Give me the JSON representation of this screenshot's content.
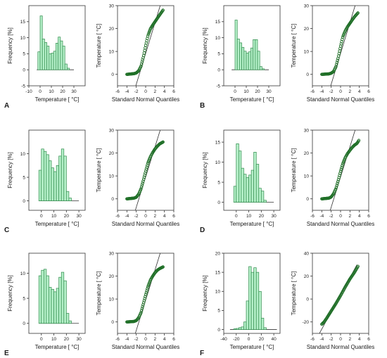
{
  "figure": {
    "panels": [
      {
        "letter": "A"
      },
      {
        "letter": "B"
      },
      {
        "letter": "C"
      },
      {
        "letter": "D"
      },
      {
        "letter": "E"
      },
      {
        "letter": "F"
      }
    ]
  },
  "colors": {
    "bar_fill": "#b5f0c9",
    "bar_stroke": "#2f8a4b",
    "point_stroke": "#1f6f27",
    "line": "#333333"
  },
  "chart_data": [
    {
      "panel": "A",
      "type": "bar",
      "xlabel": "Temperature [ °C]",
      "ylabel": "Frequency [%]",
      "xlim": [
        -10,
        40
      ],
      "xticks": [
        -10,
        0,
        10,
        20,
        30
      ],
      "ylim": [
        -5,
        20
      ],
      "yticks": [
        -5,
        0,
        5,
        10,
        15
      ],
      "bin_width": 2,
      "bins": [
        -2,
        0,
        2,
        4,
        6,
        8,
        10,
        12,
        14,
        16,
        18,
        20,
        22,
        24
      ],
      "values": [
        5.6,
        16.8,
        9.6,
        8.5,
        7.4,
        5.0,
        5.2,
        5.8,
        8.3,
        10.2,
        9.0,
        7.4,
        1.8,
        0.5
      ],
      "baseline_range": [
        -3,
        30
      ]
    },
    {
      "panel": "A",
      "type": "scatter",
      "xlabel": "Standard Normal Quantiles",
      "ylabel": "Temperature [ °C]",
      "xlim": [
        -6,
        6
      ],
      "xticks": [
        -6,
        -4,
        -2,
        0,
        2,
        4,
        6
      ],
      "ylim": [
        -5,
        30
      ],
      "yticks": [
        0,
        10,
        20,
        30
      ],
      "qq_profile": {
        "x": [
          -4.0,
          -2.5,
          -2.0,
          -1.5,
          -1.0,
          -0.5,
          0.0,
          0.5,
          1.0,
          1.5,
          2.0,
          2.5,
          3.0,
          3.7
        ],
        "y": [
          0.0,
          0.3,
          0.6,
          1.5,
          3.5,
          7.5,
          12.5,
          17.0,
          19.8,
          21.5,
          23.0,
          24.5,
          26.0,
          28.0
        ]
      },
      "reference_line": {
        "x": [
          -2.1,
          3.1
        ],
        "y": [
          -5,
          30
        ]
      }
    },
    {
      "panel": "B",
      "type": "bar",
      "xlabel": "Temperature [ °C]",
      "ylabel": "Frequency [%]",
      "xlim": [
        -10,
        40
      ],
      "xticks": [
        0,
        10,
        20,
        30
      ],
      "ylim": [
        -5,
        20
      ],
      "yticks": [
        -5,
        0,
        5,
        10,
        15
      ],
      "bin_width": 2,
      "bins": [
        -2,
        0,
        2,
        4,
        6,
        8,
        10,
        12,
        14,
        16,
        18,
        20,
        22,
        24
      ],
      "values": [
        0.0,
        15.5,
        9.6,
        8.4,
        7.0,
        5.8,
        5.2,
        5.6,
        6.8,
        9.4,
        9.4,
        5.8,
        1.0,
        0.3
      ],
      "baseline_range": [
        -3,
        30
      ]
    },
    {
      "panel": "B",
      "type": "scatter",
      "xlabel": "Standard Normal Quantiles",
      "ylabel": "Temperature [ °C]",
      "xlim": [
        -6,
        6
      ],
      "xticks": [
        -6,
        -4,
        -2,
        0,
        2,
        4,
        6
      ],
      "ylim": [
        -5,
        30
      ],
      "yticks": [
        0,
        10,
        20,
        30
      ],
      "qq_profile": {
        "x": [
          -4.0,
          -2.5,
          -2.0,
          -1.5,
          -1.0,
          -0.5,
          0.0,
          0.5,
          1.0,
          1.5,
          2.0,
          2.5,
          3.0,
          3.7
        ],
        "y": [
          0.0,
          0.2,
          0.5,
          1.2,
          3.3,
          7.3,
          12.2,
          16.5,
          19.0,
          20.8,
          22.3,
          23.8,
          25.2,
          26.8
        ]
      },
      "reference_line": {
        "x": [
          -2.1,
          3.1
        ],
        "y": [
          -5,
          30
        ]
      }
    },
    {
      "panel": "C",
      "type": "bar",
      "xlabel": "Temperature [ °C]",
      "ylabel": "Frequency [%]",
      "xlim": [
        -10,
        35
      ],
      "xticks": [
        0,
        10,
        20,
        30
      ],
      "ylim": [
        -2,
        15
      ],
      "yticks": [
        0,
        5,
        10
      ],
      "bin_width": 2,
      "bins": [
        -2,
        0,
        2,
        4,
        6,
        8,
        10,
        12,
        14,
        16,
        18,
        20,
        22
      ],
      "values": [
        6.5,
        11.0,
        10.5,
        9.8,
        8.5,
        7.0,
        6.2,
        7.5,
        9.5,
        11.0,
        9.5,
        2.0,
        0.6
      ],
      "baseline_range": [
        -2,
        30
      ]
    },
    {
      "panel": "C",
      "type": "scatter",
      "xlabel": "Standard Normal Quantiles",
      "ylabel": "Temperature [ °C]",
      "xlim": [
        -6,
        6
      ],
      "xticks": [
        -6,
        -4,
        -2,
        0,
        2,
        4,
        6
      ],
      "ylim": [
        -5,
        30
      ],
      "yticks": [
        0,
        10,
        20,
        30
      ],
      "qq_profile": {
        "x": [
          -4.0,
          -2.5,
          -2.0,
          -1.5,
          -1.0,
          -0.5,
          0.0,
          0.5,
          1.0,
          1.5,
          2.0,
          2.5,
          3.0,
          3.7
        ],
        "y": [
          0.0,
          0.3,
          0.7,
          2.0,
          4.3,
          8.0,
          12.0,
          15.8,
          18.3,
          20.2,
          21.8,
          23.0,
          24.0,
          24.8
        ]
      },
      "reference_line": {
        "x": [
          -2.2,
          3.1
        ],
        "y": [
          -5,
          30
        ]
      }
    },
    {
      "panel": "D",
      "type": "bar",
      "xlabel": "Temperature [ °C]",
      "ylabel": "Frequency [%]",
      "xlim": [
        -10,
        35
      ],
      "xticks": [
        0,
        10,
        20,
        30
      ],
      "ylim": [
        -2,
        18
      ],
      "yticks": [
        0,
        5,
        10,
        15
      ],
      "bin_width": 2,
      "bins": [
        -2,
        0,
        2,
        4,
        6,
        8,
        10,
        12,
        14,
        16,
        18,
        20,
        22
      ],
      "values": [
        4.0,
        14.6,
        12.8,
        8.5,
        7.0,
        6.2,
        6.8,
        8.0,
        12.5,
        9.5,
        3.5,
        2.8,
        0.5
      ],
      "baseline_range": [
        -2,
        30
      ]
    },
    {
      "panel": "D",
      "type": "scatter",
      "xlabel": "Standard Normal Quantiles",
      "ylabel": "Temperature [ °C]",
      "xlim": [
        -6,
        6
      ],
      "xticks": [
        -6,
        -4,
        -2,
        0,
        2,
        4,
        6
      ],
      "ylim": [
        -5,
        30
      ],
      "yticks": [
        0,
        10,
        20,
        30
      ],
      "qq_profile": {
        "x": [
          -4.0,
          -2.5,
          -2.0,
          -1.5,
          -1.0,
          -0.5,
          0.0,
          0.5,
          1.0,
          1.5,
          2.0,
          2.5,
          3.0,
          3.5,
          3.9
        ],
        "y": [
          0.0,
          0.3,
          0.8,
          2.2,
          4.4,
          8.0,
          12.0,
          15.5,
          18.0,
          19.8,
          21.2,
          22.5,
          23.5,
          24.2,
          25.5
        ]
      },
      "reference_line": {
        "x": [
          -2.2,
          3.1
        ],
        "y": [
          -5,
          30
        ]
      }
    },
    {
      "panel": "E",
      "type": "bar",
      "xlabel": "Temperature [ °C]",
      "ylabel": "Frequency [%]",
      "xlim": [
        -10,
        35
      ],
      "xticks": [
        0,
        10,
        20,
        30
      ],
      "ylim": [
        -2,
        14
      ],
      "yticks": [
        0,
        5,
        10
      ],
      "bin_width": 2,
      "bins": [
        -2,
        0,
        2,
        4,
        6,
        8,
        10,
        12,
        14,
        16,
        18,
        20,
        22
      ],
      "values": [
        9.5,
        10.6,
        10.8,
        9.5,
        7.2,
        6.8,
        6.3,
        7.0,
        9.2,
        10.2,
        8.5,
        2.0,
        0.5
      ],
      "baseline_range": [
        -2,
        30
      ]
    },
    {
      "panel": "E",
      "type": "scatter",
      "xlabel": "Standard Normal Quantiles",
      "ylabel": "Temperature [ °C]",
      "xlim": [
        -6,
        6
      ],
      "xticks": [
        -6,
        -4,
        -2,
        0,
        2,
        4,
        6
      ],
      "ylim": [
        -5,
        30
      ],
      "yticks": [
        0,
        10,
        20,
        30
      ],
      "qq_profile": {
        "x": [
          -4.0,
          -2.5,
          -2.0,
          -1.5,
          -1.0,
          -0.5,
          0.0,
          0.5,
          1.0,
          1.5,
          2.0,
          2.5,
          3.0,
          3.7
        ],
        "y": [
          0.0,
          0.2,
          0.6,
          1.8,
          4.0,
          7.8,
          11.8,
          15.5,
          18.2,
          20.0,
          21.5,
          22.6,
          23.3,
          24.0
        ]
      },
      "reference_line": {
        "x": [
          -2.2,
          3.1
        ],
        "y": [
          -5,
          30
        ]
      }
    },
    {
      "panel": "F",
      "type": "bar",
      "xlabel": "Temperature [ °C]",
      "ylabel": "Frequency [%]",
      "xlim": [
        -40,
        50
      ],
      "xticks": [
        -40,
        -20,
        0,
        20,
        40
      ],
      "ylim": [
        -1,
        20
      ],
      "yticks": [
        0,
        5,
        10,
        15,
        20
      ],
      "bin_width": 4,
      "bins": [
        -24,
        -20,
        -16,
        -12,
        -8,
        -4,
        0,
        4,
        8,
        12,
        16,
        20,
        24
      ],
      "values": [
        0.2,
        0.3,
        0.5,
        0.7,
        2.0,
        7.5,
        16.5,
        15.0,
        16.2,
        15.0,
        10.0,
        3.0,
        0.5
      ],
      "baseline_range": [
        -30,
        45
      ]
    },
    {
      "panel": "F",
      "type": "scatter",
      "xlabel": "Standard Normal Quantiles",
      "ylabel": "Temperature [ °C]",
      "xlim": [
        -6,
        6
      ],
      "xticks": [
        -6,
        -4,
        -2,
        0,
        2,
        4,
        6
      ],
      "ylim": [
        -30,
        40
      ],
      "yticks": [
        -20,
        0,
        20,
        40
      ],
      "qq_profile": {
        "x": [
          -4.0,
          -3.5,
          -3.0,
          -2.0,
          -1.0,
          0.0,
          1.0,
          2.0,
          3.0,
          3.7
        ],
        "y": [
          -22.0,
          -20.0,
          -17.0,
          -10.5,
          -4.0,
          3.0,
          10.5,
          17.5,
          23.5,
          28.5
        ]
      },
      "reference_line": {
        "x": [
          -4.5,
          3.5
        ],
        "y": [
          -30,
          30
        ]
      }
    }
  ]
}
